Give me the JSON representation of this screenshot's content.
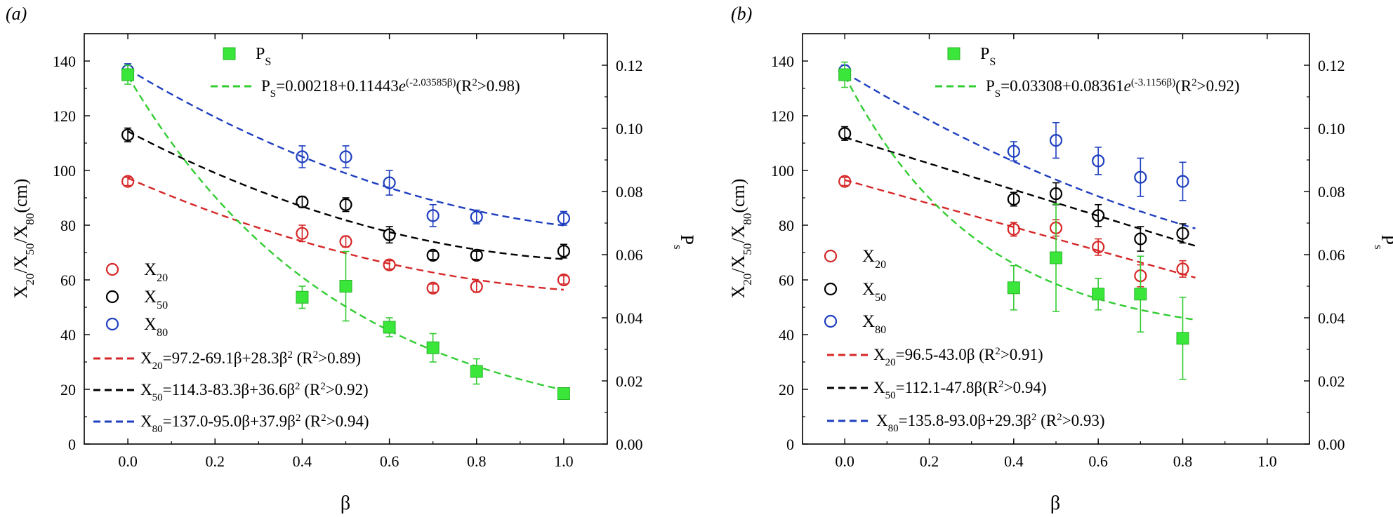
{
  "figure": {
    "panel_labels": [
      "(a)",
      "(b)"
    ]
  },
  "colors": {
    "x20": "#d62728",
    "x50": "#000000",
    "x80": "#1f3fbf",
    "ps": "#33cc33",
    "ps_fill": "#39e639"
  },
  "chart_data": [
    {
      "panel": "(a)",
      "type": "scatter",
      "xlabel": "β",
      "ylabel_left": "X20/X50/X80(cm)",
      "ylabel_right": "Ps",
      "xlim": [
        -0.1,
        1.1
      ],
      "ylim_left": [
        0,
        150
      ],
      "ylim_right": [
        0,
        0.13
      ],
      "xticks": [
        "0.0",
        "0.2",
        "0.4",
        "0.6",
        "0.8",
        "1.0"
      ],
      "yticks_left": [
        "0",
        "20",
        "40",
        "60",
        "80",
        "100",
        "120",
        "140"
      ],
      "yticks_right": [
        "0.00",
        "0.02",
        "0.04",
        "0.06",
        "0.08",
        "0.10",
        "0.12"
      ],
      "series": [
        {
          "name": "X20",
          "marker": "circle",
          "color": "#d62728",
          "x": [
            0,
            0.4,
            0.5,
            0.6,
            0.7,
            0.8,
            1.0
          ],
          "y": [
            96,
            77,
            74,
            65.5,
            57,
            57.5,
            60
          ],
          "err": [
            1.5,
            3,
            2,
            1.5,
            1.5,
            2,
            1.5
          ]
        },
        {
          "name": "X50",
          "marker": "circle",
          "color": "#000000",
          "x": [
            0,
            0.4,
            0.5,
            0.6,
            0.7,
            0.8,
            1.0
          ],
          "y": [
            113,
            88.5,
            87.5,
            76.5,
            69,
            69,
            70.5
          ],
          "err": [
            2.5,
            2,
            2.5,
            3,
            1.5,
            1.5,
            2.5
          ]
        },
        {
          "name": "X80",
          "marker": "circle",
          "color": "#1f3fbf",
          "x": [
            0,
            0.4,
            0.5,
            0.6,
            0.7,
            0.8,
            1.0
          ],
          "y": [
            136.5,
            105,
            105,
            95.5,
            83.5,
            83,
            82.5
          ],
          "err": [
            2.5,
            4,
            4,
            4.5,
            4,
            2.5,
            2.5
          ]
        },
        {
          "name": "PS",
          "marker": "square",
          "color": "#39e639",
          "axis": "right",
          "x": [
            0,
            0.4,
            0.5,
            0.6,
            0.7,
            0.8,
            1.0
          ],
          "y": [
            0.117,
            0.0465,
            0.05,
            0.037,
            0.0305,
            0.023,
            0.016
          ],
          "err": [
            0.003,
            0.0035,
            0.011,
            0.003,
            0.0045,
            0.004,
            0.001
          ]
        }
      ],
      "fits": [
        {
          "name": "X20",
          "color": "#d62728",
          "poly": [
            97.2,
            -69.1,
            28.3
          ],
          "xrange": [
            0,
            1.0
          ]
        },
        {
          "name": "X50",
          "color": "#000000",
          "poly": [
            114.3,
            -83.3,
            36.6
          ],
          "xrange": [
            0,
            1.0
          ]
        },
        {
          "name": "X80",
          "color": "#1f3fbf",
          "poly": [
            137.0,
            -95.0,
            37.9
          ],
          "xrange": [
            0,
            1.0
          ]
        },
        {
          "name": "PS",
          "color": "#33cc33",
          "axis": "right",
          "exp": [
            0.00218,
            0.11443,
            -2.03585
          ],
          "xrange": [
            0,
            1.0
          ]
        }
      ],
      "legend": {
        "ps_marker": "PS",
        "ps_fit": "PS=0.00218+0.11443e(-2.03585β)(R2>0.98)",
        "x20_marker": "X20",
        "x50_marker": "X50",
        "x80_marker": "X80",
        "x20_fit": "X20=97.2-69.1β+28.3β2 (R2>0.89)",
        "x50_fit": "X50=114.3-83.3β+36.6β2 (R2>0.92)",
        "x80_fit": "X80=137.0-95.0β+37.9β2 (R2>0.94)"
      }
    },
    {
      "panel": "(b)",
      "type": "scatter",
      "xlabel": "β",
      "ylabel_left": "X20/X50/X80(cm)",
      "ylabel_right": "Ps",
      "xlim": [
        -0.1,
        1.1
      ],
      "ylim_left": [
        0,
        150
      ],
      "ylim_right": [
        0,
        0.13
      ],
      "xticks": [
        "0.0",
        "0.2",
        "0.4",
        "0.6",
        "0.8",
        "1.0"
      ],
      "yticks_left": [
        "0",
        "20",
        "40",
        "60",
        "80",
        "100",
        "120",
        "140"
      ],
      "yticks_right": [
        "0.00",
        "0.02",
        "0.04",
        "0.06",
        "0.08",
        "0.10",
        "0.12"
      ],
      "series": [
        {
          "name": "X20",
          "marker": "circle",
          "color": "#d62728",
          "x": [
            0,
            0.4,
            0.5,
            0.6,
            0.7,
            0.8
          ],
          "y": [
            96,
            78.5,
            79,
            72,
            61.5,
            64
          ],
          "err": [
            1.5,
            2.5,
            3,
            3,
            4,
            3
          ]
        },
        {
          "name": "X50",
          "marker": "circle",
          "color": "#000000",
          "x": [
            0,
            0.4,
            0.5,
            0.6,
            0.7,
            0.8
          ],
          "y": [
            113.5,
            89.5,
            91.5,
            83.5,
            75,
            77
          ],
          "err": [
            2.5,
            2.5,
            4,
            4,
            4.5,
            3.5
          ]
        },
        {
          "name": "X80",
          "marker": "circle",
          "color": "#1f3fbf",
          "x": [
            0,
            0.4,
            0.5,
            0.6,
            0.7,
            0.8
          ],
          "y": [
            136.5,
            107,
            111,
            103.5,
            97.5,
            96
          ],
          "err": [
            2,
            3.5,
            6.5,
            5,
            7,
            7
          ]
        },
        {
          "name": "PS",
          "marker": "square",
          "color": "#39e639",
          "axis": "right",
          "x": [
            0,
            0.4,
            0.5,
            0.6,
            0.7,
            0.8
          ],
          "y": [
            0.117,
            0.0495,
            0.059,
            0.0475,
            0.0475,
            0.0335
          ],
          "err": [
            0.004,
            0.007,
            0.017,
            0.005,
            0.012,
            0.013
          ]
        }
      ],
      "fits": [
        {
          "name": "X20",
          "color": "#d62728",
          "poly": [
            96.5,
            -43.0
          ],
          "xrange": [
            0,
            0.83
          ]
        },
        {
          "name": "X50",
          "color": "#000000",
          "poly": [
            112.1,
            -47.8
          ],
          "xrange": [
            0,
            0.83
          ]
        },
        {
          "name": "X80",
          "color": "#1f3fbf",
          "poly": [
            135.8,
            -93.0,
            29.3
          ],
          "xrange": [
            0,
            0.83
          ]
        },
        {
          "name": "PS",
          "color": "#33cc33",
          "axis": "right",
          "exp": [
            0.03308,
            0.08361,
            -3.1156
          ],
          "xrange": [
            0,
            0.83
          ]
        }
      ],
      "legend": {
        "ps_marker": "PS",
        "ps_fit": "PS=0.03308+0.08361e(-3.1156β)(R2>0.92)",
        "x20_marker": "X20",
        "x50_marker": "X50",
        "x80_marker": "X80",
        "x20_fit": "X20=96.5-43.0β (R2>0.91)",
        "x50_fit": "X50=112.1-47.8β(R2>0.94)",
        "x80_fit": "X80=135.8-93.0β+29.3β2 (R2>0.93)"
      }
    }
  ]
}
